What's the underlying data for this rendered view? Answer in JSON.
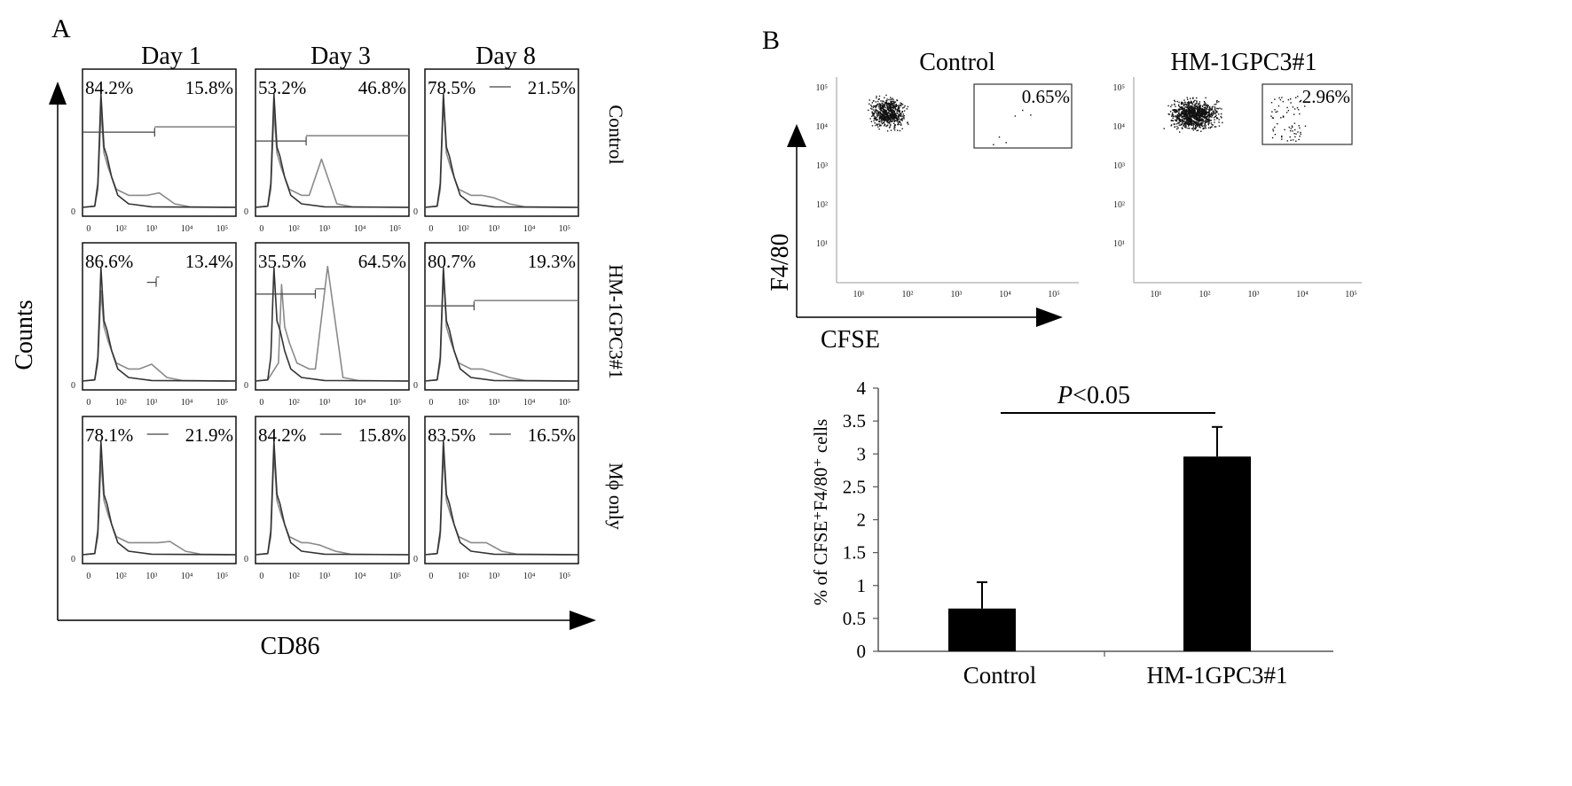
{
  "panel_a": {
    "letter": "A",
    "y_axis_label": "Counts",
    "x_axis_label": "CD86",
    "columns": [
      "Day 1",
      "Day 3",
      "Day 8"
    ],
    "rows": [
      "Control",
      "HM-1GPC3#1",
      "Mϕ only"
    ],
    "x_ticks": [
      "0",
      "10²",
      "10³",
      "10⁴",
      "10⁵"
    ],
    "y_tick_zero": "0",
    "cells": [
      [
        {
          "left": "84.2%",
          "right": "15.8%"
        },
        {
          "left": "53.2%",
          "right": "46.8%"
        },
        {
          "left": "78.5%",
          "right": "21.5%"
        }
      ],
      [
        {
          "left": "86.6%",
          "right": "13.4%"
        },
        {
          "left": "35.5%",
          "right": "64.5%"
        },
        {
          "left": "80.7%",
          "right": "19.3%"
        }
      ],
      [
        {
          "left": "78.1%",
          "right": "21.9%"
        },
        {
          "left": "84.2%",
          "right": "15.8%"
        },
        {
          "left": "83.5%",
          "right": "16.5%"
        }
      ]
    ]
  },
  "panel_b": {
    "letter": "B",
    "y_axis_label": "F4/80",
    "x_axis_label": "CFSE",
    "scatter_ticks": [
      "10¹",
      "10²",
      "10³",
      "10⁴",
      "10⁵"
    ],
    "plots": [
      {
        "title": "Control",
        "gate_value": "0.65%"
      },
      {
        "title": "HM-1GPC3#1",
        "gate_value": "2.96%"
      }
    ]
  },
  "chart_data": {
    "type": "bar",
    "categories": [
      "Control",
      "HM-1GPC3#1"
    ],
    "values": [
      0.65,
      2.96
    ],
    "errors": [
      0.4,
      0.45
    ],
    "ylabel": "% of CFSE⁺F4/80⁺ cells",
    "ylim": [
      0,
      4
    ],
    "y_ticks": [
      "0",
      "0.5",
      "1",
      "1.5",
      "2",
      "2.5",
      "3",
      "3.5",
      "4"
    ],
    "significance": {
      "p_italic": "P",
      "rest": "<0.05"
    },
    "bar_color": "#000000"
  }
}
